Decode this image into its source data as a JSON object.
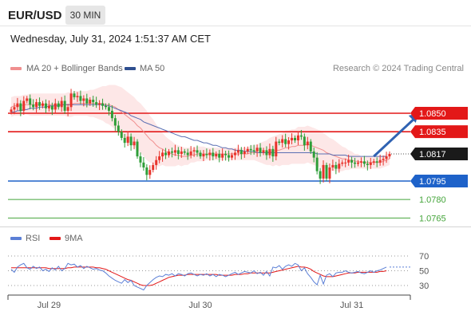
{
  "header": {
    "pair": "EUR/USD",
    "timeframe": "30 MIN",
    "datetime": "Wednesday, July 31, 2024 1:51:37 AM CET"
  },
  "legend": {
    "ma20_label": "MA 20 + Bollinger Bands",
    "ma50_label": "MA 50",
    "rsi_label": "RSI",
    "rsi9_label": "9MA",
    "credit": "Research © 2024 Trading Central"
  },
  "colors": {
    "up": "#e8332b",
    "down": "#2e9e38",
    "ma20": "#f08f8f",
    "ma50": "#5b6fb3",
    "band_fill": "#fde7e7",
    "resistance": "#e31818",
    "pivot": "#1e62c9",
    "support": "#45a53b",
    "rsi": "#5b7fd6",
    "rsi9": "#e31818",
    "arrow": "#2f62b2",
    "last_price_bg": "#1a1a1a"
  },
  "chart_data": [
    {
      "type": "candlestick",
      "xlabel": "",
      "ylabel": "",
      "x_ticks": [
        "Jul 29",
        "Jul 30",
        "Jul 31"
      ],
      "x_tick_index": [
        12,
        60,
        108
      ],
      "ylim": [
        1.0747,
        1.0913
      ],
      "last_price": 1.0817,
      "levels": [
        {
          "value": 1.085,
          "label": "1.0850",
          "kind": "resistance",
          "style": "box"
        },
        {
          "value": 1.0835,
          "label": "1.0835",
          "kind": "resistance",
          "style": "box"
        },
        {
          "value": 1.0795,
          "label": "1.0795",
          "kind": "pivot",
          "style": "box"
        },
        {
          "value": 1.078,
          "label": "1.0780",
          "kind": "support",
          "style": "text"
        },
        {
          "value": 1.0765,
          "label": "1.0765",
          "kind": "support",
          "style": "text"
        }
      ],
      "arrow": {
        "from": [
          115,
          1.0815
        ],
        "to": [
          124,
          1.085
        ],
        "direction": "up"
      },
      "closes": [
        1.0853,
        1.0855,
        1.0858,
        1.0852,
        1.086,
        1.0862,
        1.0857,
        1.0855,
        1.0859,
        1.0856,
        1.0858,
        1.0854,
        1.0856,
        1.0853,
        1.0858,
        1.0855,
        1.086,
        1.0852,
        1.0855,
        1.0866,
        1.0863,
        1.0864,
        1.086,
        1.0862,
        1.0858,
        1.0861,
        1.0859,
        1.0857,
        1.0858,
        1.0856,
        1.0855,
        1.0852,
        1.0846,
        1.084,
        1.0835,
        1.083,
        1.0826,
        1.0831,
        1.0824,
        1.0827,
        1.0815,
        1.081,
        1.0806,
        1.08,
        1.0804,
        1.0808,
        1.0812,
        1.0815,
        1.0818,
        1.0816,
        1.0819,
        1.0818,
        1.082,
        1.0817,
        1.0819,
        1.0818,
        1.0816,
        1.0819,
        1.082,
        1.0818,
        1.0815,
        1.0817,
        1.0816,
        1.0818,
        1.0815,
        1.0817,
        1.0814,
        1.0817,
        1.0816,
        1.0814,
        1.0816,
        1.0818,
        1.082,
        1.0817,
        1.0819,
        1.0821,
        1.082,
        1.0819,
        1.0822,
        1.0818,
        1.082,
        1.0816,
        1.0821,
        1.0815,
        1.0827,
        1.0826,
        1.0829,
        1.0825,
        1.0828,
        1.083,
        1.0828,
        1.0832,
        1.0831,
        1.0824,
        1.0827,
        1.0819,
        1.0814,
        1.0803,
        1.0797,
        1.0808,
        1.0797,
        1.0806,
        1.0808,
        1.0805,
        1.0809,
        1.081,
        1.081,
        1.0812,
        1.081,
        1.0809,
        1.081,
        1.0811,
        1.0809,
        1.0808,
        1.081,
        1.0811,
        1.081,
        1.0812,
        1.0813,
        1.0815,
        1.0817
      ],
      "ma20": [
        1.0855,
        1.0856,
        1.0856,
        1.0856,
        1.0857,
        1.0857,
        1.0857,
        1.0857,
        1.0857,
        1.0857,
        1.0857,
        1.0857,
        1.0857,
        1.0857,
        1.0857,
        1.0857,
        1.0857,
        1.0857,
        1.0857,
        1.0857,
        1.0858,
        1.0858,
        1.0858,
        1.0858,
        1.0858,
        1.0858,
        1.0858,
        1.0858,
        1.0858,
        1.0858,
        1.0857,
        1.0857,
        1.0856,
        1.0855,
        1.0853,
        1.0851,
        1.0849,
        1.0847,
        1.0845,
        1.0843,
        1.084,
        1.0838,
        1.0835,
        1.0832,
        1.0829,
        1.0827,
        1.0824,
        1.0822,
        1.0821,
        1.0819,
        1.0818,
        1.0817,
        1.0816,
        1.0816,
        1.0815,
        1.0815,
        1.0815,
        1.0816,
        1.0816,
        1.0817,
        1.0817,
        1.0817,
        1.0817,
        1.0817,
        1.0817,
        1.0817,
        1.0817,
        1.0817,
        1.0817,
        1.0817,
        1.0817,
        1.0817,
        1.0817,
        1.0817,
        1.0817,
        1.0817,
        1.0818,
        1.0818,
        1.0818,
        1.0818,
        1.0818,
        1.0818,
        1.0819,
        1.0819,
        1.082,
        1.082,
        1.0821,
        1.0822,
        1.0822,
        1.0823,
        1.0823,
        1.0824,
        1.0824,
        1.0824,
        1.0825,
        1.0824,
        1.0823,
        1.0822,
        1.0821,
        1.082,
        1.0818,
        1.0817,
        1.0816,
        1.0815,
        1.0814,
        1.0813,
        1.0813,
        1.0812,
        1.0812,
        1.0811,
        1.0811,
        1.081,
        1.081,
        1.081,
        1.081,
        1.081,
        1.081,
        1.081,
        1.0811,
        1.0812,
        1.0813
      ],
      "ma50": [
        1.0851,
        1.0851,
        1.0852,
        1.0852,
        1.0853,
        1.0853,
        1.0854,
        1.0854,
        1.0854,
        1.0855,
        1.0855,
        1.0855,
        1.0856,
        1.0856,
        1.0856,
        1.0856,
        1.0857,
        1.0857,
        1.0857,
        1.0857,
        1.0857,
        1.0857,
        1.0857,
        1.0857,
        1.0857,
        1.0857,
        1.0857,
        1.0857,
        1.0857,
        1.0857,
        1.0856,
        1.0856,
        1.0855,
        1.0854,
        1.0853,
        1.0852,
        1.0851,
        1.085,
        1.0848,
        1.0847,
        1.0846,
        1.0845,
        1.0843,
        1.0842,
        1.0841,
        1.084,
        1.0839,
        1.0838,
        1.0837,
        1.0836,
        1.0835,
        1.0834,
        1.0833,
        1.0832,
        1.0831,
        1.0831,
        1.083,
        1.0829,
        1.0828,
        1.0828,
        1.0827,
        1.0826,
        1.0826,
        1.0825,
        1.0824,
        1.0824,
        1.0823,
        1.0822,
        1.0822,
        1.0821,
        1.0821,
        1.082,
        1.082,
        1.082,
        1.0819,
        1.0819,
        1.0819,
        1.0819,
        1.0818,
        1.0818,
        1.0818,
        1.0818,
        1.0818,
        1.0818,
        1.0818,
        1.0818,
        1.0818,
        1.0818,
        1.0818,
        1.0818,
        1.0818,
        1.0818,
        1.0818,
        1.0818,
        1.0818,
        1.0818,
        1.0818,
        1.0817,
        1.0817,
        1.0817,
        1.0817,
        1.0817,
        1.0816,
        1.0816,
        1.0816,
        1.0816,
        1.0816,
        1.0815,
        1.0815,
        1.0815,
        1.0815,
        1.0815,
        1.0815,
        1.0815,
        1.0815,
        1.0815,
        1.0815,
        1.0815,
        1.0815,
        1.0815
      ],
      "bb_width": [
        0.0008,
        0.0008,
        0.0008,
        0.0008,
        0.0008,
        0.0008,
        0.0009,
        0.0009,
        0.0009,
        0.0009,
        0.0009,
        0.0009,
        0.0009,
        0.0009,
        0.0009,
        0.0009,
        0.0009,
        0.0009,
        0.001,
        0.001,
        0.001,
        0.001,
        0.001,
        0.001,
        0.001,
        0.0011,
        0.0011,
        0.0012,
        0.0013,
        0.0014,
        0.0015,
        0.0016,
        0.0017,
        0.0018,
        0.0019,
        0.002,
        0.002,
        0.002,
        0.002,
        0.002,
        0.002,
        0.002,
        0.002,
        0.002,
        0.0019,
        0.0018,
        0.0017,
        0.0015,
        0.0013,
        0.0012,
        0.0011,
        0.001,
        0.0009,
        0.0008,
        0.0008,
        0.0007,
        0.0007,
        0.0006,
        0.0006,
        0.0006,
        0.0006,
        0.0006,
        0.0005,
        0.0005,
        0.0005,
        0.0005,
        0.0005,
        0.0005,
        0.0005,
        0.0005,
        0.0005,
        0.0005,
        0.0005,
        0.0005,
        0.0005,
        0.0005,
        0.0006,
        0.0006,
        0.0007,
        0.0008,
        0.0009,
        0.001,
        0.0011,
        0.0012,
        0.0012,
        0.0013,
        0.0013,
        0.0014,
        0.0014,
        0.0014,
        0.0014,
        0.0015,
        0.0015,
        0.0015,
        0.0015,
        0.0015,
        0.0015,
        0.0015,
        0.0015,
        0.0014,
        0.0014,
        0.0013,
        0.0013,
        0.0012,
        0.0011,
        0.001,
        0.0009,
        0.0008,
        0.0007,
        0.0006,
        0.0006,
        0.0005,
        0.0005,
        0.0005,
        0.0005,
        0.0005,
        0.0005,
        0.0005,
        0.0005,
        0.0005,
        0.0005
      ]
    },
    {
      "type": "line",
      "title": "RSI",
      "ylim": [
        20,
        80
      ],
      "y_ticks": [
        30,
        50,
        70
      ],
      "series": [
        {
          "name": "RSI",
          "values": [
            52,
            48,
            55,
            58,
            60,
            54,
            52,
            56,
            53,
            55,
            50,
            52,
            49,
            54,
            51,
            56,
            50,
            53,
            60,
            58,
            59,
            55,
            57,
            53,
            56,
            54,
            52,
            53,
            51,
            50,
            47,
            43,
            40,
            37,
            35,
            33,
            38,
            34,
            37,
            30,
            28,
            26,
            24,
            30,
            34,
            38,
            41,
            43,
            42,
            45,
            44,
            46,
            43,
            46,
            45,
            43,
            46,
            47,
            45,
            43,
            45,
            44,
            46,
            43,
            45,
            42,
            45,
            44,
            42,
            44,
            46,
            48,
            45,
            47,
            49,
            48,
            47,
            50,
            46,
            48,
            44,
            49,
            43,
            55,
            54,
            57,
            52,
            56,
            58,
            56,
            60,
            58,
            50,
            54,
            46,
            41,
            35,
            31,
            44,
            32,
            44,
            46,
            42,
            47,
            48,
            48,
            50,
            48,
            47,
            48,
            49,
            47,
            46,
            48,
            50,
            48,
            50,
            51,
            53,
            55
          ]
        },
        {
          "name": "9MA",
          "values": [
            54,
            54,
            54,
            54,
            54,
            54,
            54,
            54,
            54,
            54,
            54,
            54,
            53,
            53,
            53,
            53,
            53,
            53,
            54,
            54,
            55,
            55,
            55,
            55,
            55,
            55,
            55,
            54,
            54,
            53,
            52,
            50,
            48,
            46,
            44,
            42,
            40,
            38,
            37,
            35,
            33,
            31,
            30,
            30,
            30,
            31,
            33,
            35,
            37,
            39,
            41,
            42,
            43,
            44,
            44,
            44,
            45,
            45,
            45,
            45,
            45,
            45,
            45,
            45,
            45,
            45,
            44,
            44,
            44,
            44,
            44,
            45,
            45,
            45,
            46,
            46,
            47,
            47,
            47,
            47,
            47,
            47,
            47,
            48,
            49,
            50,
            51,
            52,
            53,
            54,
            55,
            56,
            55,
            55,
            54,
            52,
            49,
            47,
            45,
            43,
            42,
            42,
            42,
            43,
            44,
            45,
            46,
            47,
            47,
            47,
            48,
            48,
            48,
            48,
            48,
            48,
            48,
            49,
            49,
            50
          ]
        }
      ]
    }
  ]
}
